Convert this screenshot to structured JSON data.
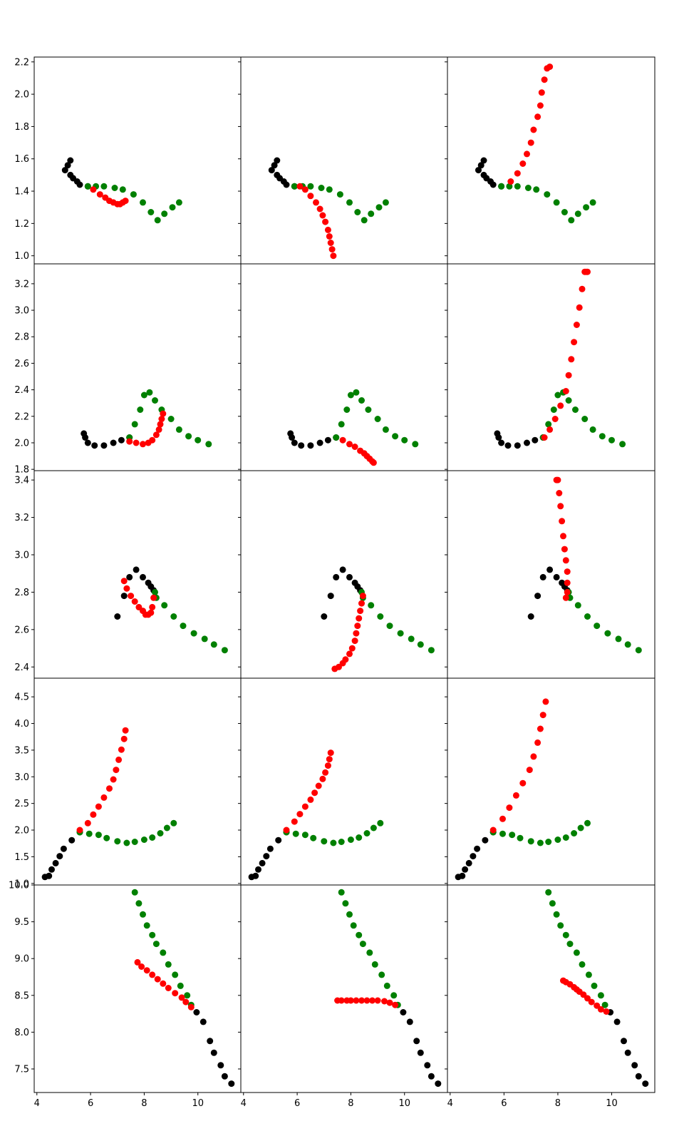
{
  "colors": {
    "history": "#000000",
    "truth": "#008000",
    "prediction": "#ff0000",
    "axes": "#000000",
    "background": "#ffffff"
  },
  "chart_data": {
    "type": "scatter",
    "layout": {
      "rows": 5,
      "cols": 3,
      "sharex": true,
      "sharey": "row",
      "grid": false,
      "legend": "none"
    },
    "xlim": [
      3.9,
      11.6
    ],
    "xticks": [
      4,
      6,
      8,
      10
    ],
    "xtick_labels": [
      "4",
      "6",
      "8",
      "10"
    ],
    "rows": [
      {
        "ylim": [
          0.95,
          2.23
        ],
        "yticks": [
          1.0,
          1.2,
          1.4,
          1.6,
          1.8,
          2.0,
          2.2
        ],
        "ytick_labels": [
          "1.0",
          "1.2",
          "1.4",
          "1.6",
          "1.8",
          "2.0",
          "2.2"
        ],
        "history": {
          "x": [
            5.25,
            5.15,
            5.05,
            5.25,
            5.35,
            5.5,
            5.6,
            5.9
          ],
          "y": [
            1.59,
            1.56,
            1.53,
            1.5,
            1.48,
            1.46,
            1.44,
            1.43
          ]
        },
        "truth": {
          "x": [
            5.9,
            6.2,
            6.5,
            6.9,
            7.2,
            7.6,
            7.95,
            8.25,
            8.5,
            8.75,
            9.05,
            9.3
          ],
          "y": [
            1.43,
            1.43,
            1.43,
            1.42,
            1.41,
            1.38,
            1.33,
            1.27,
            1.22,
            1.26,
            1.3,
            1.33
          ]
        },
        "predictions": [
          {
            "x": [
              6.1,
              6.35,
              6.55,
              6.7,
              6.85,
              7.0,
              7.1,
              7.2,
              7.3
            ],
            "y": [
              1.41,
              1.38,
              1.36,
              1.34,
              1.33,
              1.32,
              1.32,
              1.33,
              1.34
            ]
          },
          {
            "x": [
              6.1,
              6.3,
              6.5,
              6.7,
              6.85,
              6.95,
              7.05,
              7.15,
              7.2,
              7.25,
              7.3,
              7.35
            ],
            "y": [
              1.43,
              1.41,
              1.37,
              1.33,
              1.29,
              1.25,
              1.21,
              1.16,
              1.12,
              1.08,
              1.04,
              1.0
            ]
          },
          {
            "x": [
              6.25,
              6.5,
              6.7,
              6.85,
              7.0,
              7.1,
              7.25,
              7.35,
              7.4,
              7.5,
              7.6,
              7.7
            ],
            "y": [
              1.46,
              1.51,
              1.57,
              1.63,
              1.7,
              1.78,
              1.86,
              1.93,
              2.01,
              2.09,
              2.16,
              2.17
            ]
          }
        ]
      },
      {
        "ylim": [
          1.79,
          3.35
        ],
        "yticks": [
          1.8,
          2.0,
          2.2,
          2.4,
          2.6,
          2.8,
          3.0,
          3.2
        ],
        "ytick_labels": [
          "1.8",
          "2.0",
          "2.2",
          "2.4",
          "2.6",
          "2.8",
          "3.0",
          "3.2"
        ],
        "history": {
          "x": [
            5.75,
            5.8,
            5.9,
            6.15,
            6.5,
            6.85,
            7.15,
            7.45
          ],
          "y": [
            2.07,
            2.04,
            2.0,
            1.98,
            1.98,
            2.0,
            2.02,
            2.04
          ]
        },
        "truth": {
          "x": [
            7.45,
            7.65,
            7.85,
            8.0,
            8.2,
            8.4,
            8.65,
            9.0,
            9.3,
            9.65,
            10.0,
            10.4
          ],
          "y": [
            2.04,
            2.14,
            2.25,
            2.36,
            2.38,
            2.32,
            2.25,
            2.18,
            2.1,
            2.05,
            2.02,
            1.99
          ]
        },
        "predictions": [
          {
            "x": [
              7.45,
              7.7,
              7.95,
              8.15,
              8.3,
              8.45,
              8.55,
              8.6,
              8.65,
              8.7
            ],
            "y": [
              2.01,
              2.0,
              1.99,
              2.0,
              2.02,
              2.06,
              2.1,
              2.14,
              2.18,
              2.22
            ]
          },
          {
            "x": [
              7.7,
              7.95,
              8.15,
              8.35,
              8.5,
              8.6,
              8.7,
              8.8,
              8.85
            ],
            "y": [
              2.02,
              1.99,
              1.97,
              1.94,
              1.92,
              1.9,
              1.88,
              1.86,
              1.85
            ]
          },
          {
            "x": [
              7.5,
              7.7,
              7.9,
              8.1,
              8.3,
              8.4,
              8.5,
              8.6,
              8.7,
              8.8,
              8.9,
              9.0,
              9.05,
              9.1
            ],
            "y": [
              2.04,
              2.1,
              2.18,
              2.28,
              2.39,
              2.51,
              2.63,
              2.76,
              2.89,
              3.02,
              3.16,
              3.29,
              3.29,
              3.29
            ]
          }
        ]
      },
      {
        "ylim": [
          2.34,
          3.45
        ],
        "yticks": [
          2.4,
          2.6,
          2.8,
          3.0,
          3.2,
          3.4
        ],
        "ytick_labels": [
          "2.4",
          "2.6",
          "2.8",
          "3.0",
          "3.2",
          "3.4"
        ],
        "history": {
          "x": [
            7.0,
            7.25,
            7.45,
            7.7,
            7.95,
            8.15,
            8.25,
            8.35
          ],
          "y": [
            2.67,
            2.78,
            2.88,
            2.92,
            2.88,
            2.85,
            2.83,
            2.81
          ]
        },
        "truth": {
          "x": [
            8.4,
            8.45,
            8.75,
            9.1,
            9.45,
            9.85,
            10.25,
            10.6,
            11.0
          ],
          "y": [
            2.8,
            2.77,
            2.73,
            2.67,
            2.62,
            2.58,
            2.55,
            2.52,
            2.49
          ]
        },
        "predictions": [
          {
            "x": [
              7.25,
              7.35,
              7.5,
              7.65,
              7.8,
              7.95,
              8.05,
              8.15,
              8.25,
              8.3,
              8.35
            ],
            "y": [
              2.86,
              2.82,
              2.78,
              2.75,
              2.72,
              2.7,
              2.68,
              2.68,
              2.69,
              2.72,
              2.77
            ]
          },
          {
            "x": [
              7.4,
              7.55,
              7.7,
              7.8,
              7.95,
              8.05,
              8.15,
              8.2,
              8.25,
              8.3,
              8.35,
              8.4,
              8.45
            ],
            "y": [
              2.39,
              2.4,
              2.42,
              2.44,
              2.47,
              2.5,
              2.54,
              2.58,
              2.62,
              2.66,
              2.7,
              2.74,
              2.78
            ]
          },
          {
            "x": [
              8.3,
              8.35,
              8.35,
              8.35,
              8.3,
              8.25,
              8.2,
              8.15,
              8.1,
              8.05,
              8.0,
              7.95
            ],
            "y": [
              2.77,
              2.8,
              2.85,
              2.91,
              2.97,
              3.03,
              3.1,
              3.18,
              3.26,
              3.33,
              3.4,
              3.4
            ]
          }
        ]
      },
      {
        "ylim": [
          0.97,
          4.85
        ],
        "yticks": [
          1.0,
          1.5,
          2.0,
          2.5,
          3.0,
          3.5,
          4.0,
          4.5
        ],
        "ytick_labels": [
          "1.0",
          "1.5",
          "2.0",
          "2.5",
          "3.0",
          "3.5",
          "4.0",
          "4.5"
        ],
        "history": {
          "x": [
            4.3,
            4.45,
            4.55,
            4.7,
            4.85,
            5.0,
            5.3,
            5.6
          ],
          "y": [
            1.12,
            1.14,
            1.26,
            1.38,
            1.51,
            1.65,
            1.81,
            1.96
          ]
        },
        "truth": {
          "x": [
            5.6,
            5.95,
            6.3,
            6.6,
            7.0,
            7.35,
            7.65,
            8.0,
            8.3,
            8.6,
            8.85,
            9.1
          ],
          "y": [
            1.96,
            1.93,
            1.91,
            1.85,
            1.79,
            1.76,
            1.78,
            1.82,
            1.86,
            1.94,
            2.04,
            2.13
          ]
        },
        "predictions": [
          {
            "x": [
              5.6,
              5.9,
              6.1,
              6.3,
              6.5,
              6.7,
              6.85,
              6.95,
              7.05,
              7.15,
              7.25,
              7.3
            ],
            "y": [
              2.0,
              2.13,
              2.29,
              2.44,
              2.61,
              2.78,
              2.95,
              3.13,
              3.32,
              3.51,
              3.71,
              3.87
            ]
          },
          {
            "x": [
              5.6,
              5.9,
              6.1,
              6.3,
              6.5,
              6.65,
              6.8,
              6.95,
              7.05,
              7.15,
              7.2,
              7.25
            ],
            "y": [
              2.0,
              2.16,
              2.3,
              2.44,
              2.57,
              2.7,
              2.83,
              2.96,
              3.08,
              3.21,
              3.33,
              3.45
            ]
          },
          {
            "x": [
              5.6,
              5.95,
              6.2,
              6.45,
              6.7,
              6.95,
              7.1,
              7.25,
              7.35,
              7.45,
              7.55
            ],
            "y": [
              2.0,
              2.21,
              2.42,
              2.65,
              2.88,
              3.13,
              3.38,
              3.64,
              3.9,
              4.16,
              4.41
            ]
          }
        ]
      },
      {
        "ylim": [
          7.18,
          10.0
        ],
        "yticks": [
          7.5,
          8.0,
          8.5,
          9.0,
          9.5,
          10.0
        ],
        "ytick_labels": [
          "7.5",
          "8.0",
          "8.5",
          "9.0",
          "9.5",
          "10.0"
        ],
        "history": {
          "x": [
            11.25,
            11.0,
            10.85,
            10.6,
            10.45,
            10.2,
            9.95
          ],
          "y": [
            7.3,
            7.4,
            7.55,
            7.72,
            7.88,
            8.14,
            8.27
          ]
        },
        "truth": {
          "x": [
            7.65,
            7.8,
            7.95,
            8.1,
            8.3,
            8.45,
            8.7,
            8.9,
            9.15,
            9.35,
            9.6,
            9.75
          ],
          "y": [
            9.9,
            9.75,
            9.6,
            9.45,
            9.32,
            9.2,
            9.08,
            8.92,
            8.78,
            8.63,
            8.5,
            8.37
          ]
        },
        "predictions": [
          {
            "x": [
              7.75,
              7.9,
              8.1,
              8.3,
              8.5,
              8.7,
              8.9,
              9.15,
              9.4,
              9.55,
              9.75
            ],
            "y": [
              8.95,
              8.89,
              8.84,
              8.78,
              8.72,
              8.66,
              8.6,
              8.53,
              8.47,
              8.41,
              8.34
            ]
          },
          {
            "x": [
              7.5,
              7.65,
              7.85,
              8.0,
              8.2,
              8.4,
              8.6,
              8.8,
              9.0,
              9.25,
              9.45,
              9.65
            ],
            "y": [
              8.43,
              8.43,
              8.43,
              8.43,
              8.43,
              8.43,
              8.43,
              8.43,
              8.43,
              8.42,
              8.4,
              8.37
            ]
          },
          {
            "x": [
              8.2,
              8.3,
              8.45,
              8.6,
              8.7,
              8.8,
              8.95,
              9.1,
              9.25,
              9.45,
              9.6,
              9.8
            ],
            "y": [
              8.7,
              8.68,
              8.65,
              8.61,
              8.58,
              8.55,
              8.51,
              8.46,
              8.41,
              8.36,
              8.31,
              8.28
            ]
          }
        ]
      }
    ]
  }
}
